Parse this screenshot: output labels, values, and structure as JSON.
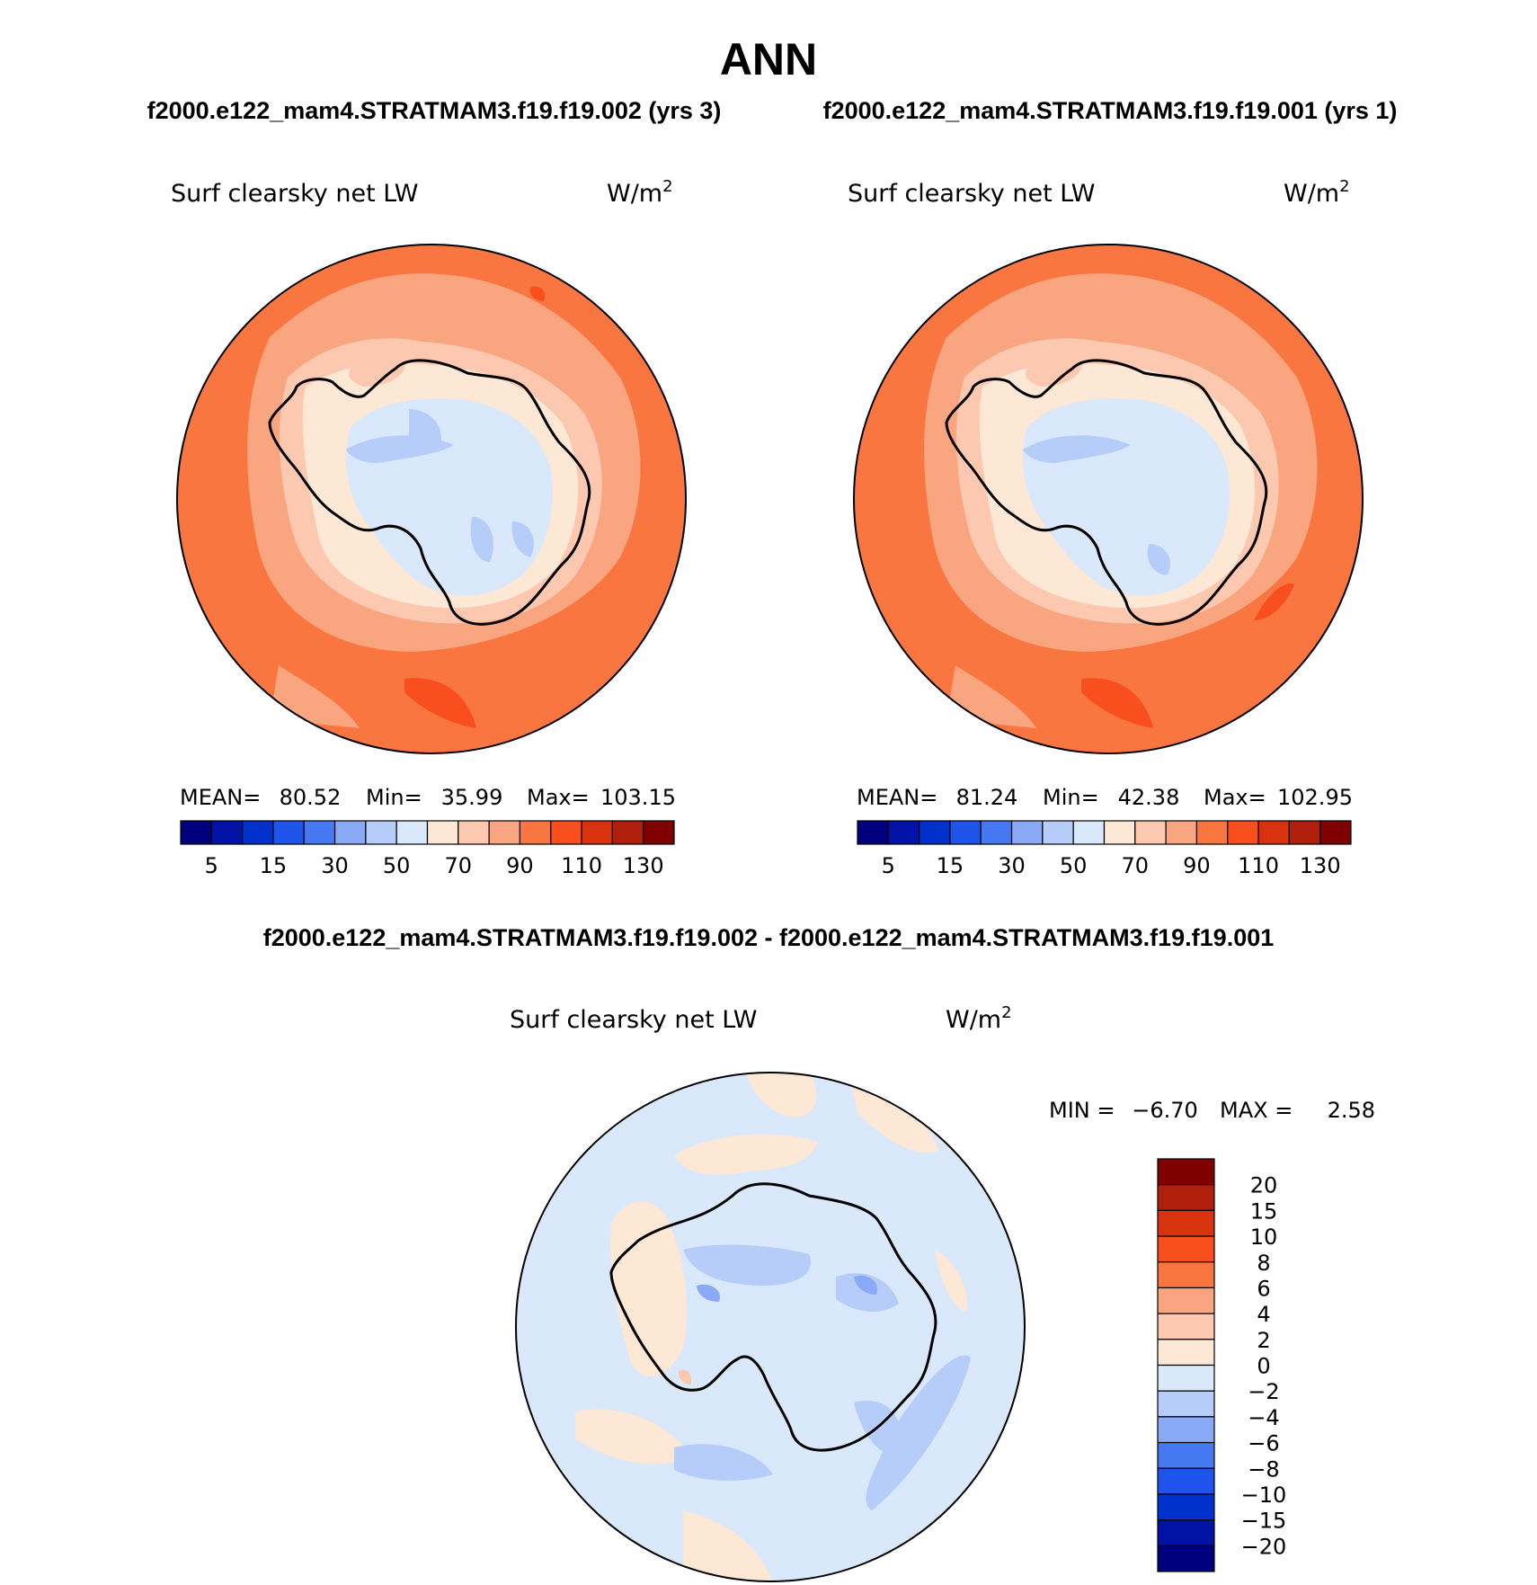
{
  "main_title": "ANN",
  "case1_header": "f2000.e122_mam4.STRATMAM3.f19.f19.002 (yrs 3)",
  "case2_header": "f2000.e122_mam4.STRATMAM3.f19.f19.001 (yrs 1)",
  "diff_header": "f2000.e122_mam4.STRATMAM3.f19.f19.002 - f2000.e122_mam4.STRATMAM3.f19.f19.001",
  "panels": [
    {
      "variable": "Surf clearsky net LW",
      "units": "W/m",
      "units_exp": "2",
      "stats": {
        "mean_label": "MEAN=",
        "mean": "80.52",
        "min_label": "Min=",
        "min": "35.99",
        "max_label": "Max=",
        "max": "103.15"
      }
    },
    {
      "variable": "Surf clearsky net LW",
      "units": "W/m",
      "units_exp": "2",
      "stats": {
        "mean_label": "MEAN=",
        "mean": "81.24",
        "min_label": "Min=",
        "min": "42.38",
        "max_label": "Max=",
        "max": "102.95"
      }
    }
  ],
  "diff_panel": {
    "variable": "Surf clearsky net LW",
    "units": "W/m",
    "units_exp": "2",
    "min_label": "MIN =",
    "min": "−6.70",
    "max_label": "MAX =",
    "max": "2.58"
  },
  "abs_colorbar": {
    "colors": [
      "#00007f",
      "#0013a6",
      "#0031cc",
      "#1e54ec",
      "#4678f2",
      "#8aa9f7",
      "#b7cdf9",
      "#d9e8fb",
      "#fde7d5",
      "#fcc8b0",
      "#f9a57f",
      "#fa7640",
      "#f94e1e",
      "#d8320e",
      "#b01f0c",
      "#800000"
    ],
    "labels": [
      "5",
      "15",
      "30",
      "50",
      "70",
      "90",
      "110",
      "130"
    ]
  },
  "diff_colorbar": {
    "colors": [
      "#00007f",
      "#0013a6",
      "#0031cc",
      "#1e54ec",
      "#4678f2",
      "#8aa9f7",
      "#b7cdf9",
      "#d9e8fb",
      "#fde7d5",
      "#fcc8b0",
      "#f9a57f",
      "#fa7640",
      "#f94e1e",
      "#d8320e",
      "#b01f0c",
      "#800000"
    ],
    "labels": [
      "20",
      "15",
      "10",
      "8",
      "6",
      "4",
      "2",
      "0",
      "−2",
      "−4",
      "−6",
      "−8",
      "−10",
      "−15",
      "−20"
    ]
  },
  "map_colors": {
    "ocean_outer": "#fa7640",
    "ocean_mid": "#f9a57f",
    "ocean_inner": "#fcc8b0",
    "coast": "#fde7d5",
    "interior": "#d9e8fb",
    "interior_low": "#b7cdf9",
    "hot": "#f94e1e",
    "diff_base": "#d9e8fb",
    "diff_pos": "#fde7d5",
    "diff_neg": "#b7cdf9",
    "diff_neg2": "#8aa9f7",
    "diff_red": "#fcc8b0"
  }
}
